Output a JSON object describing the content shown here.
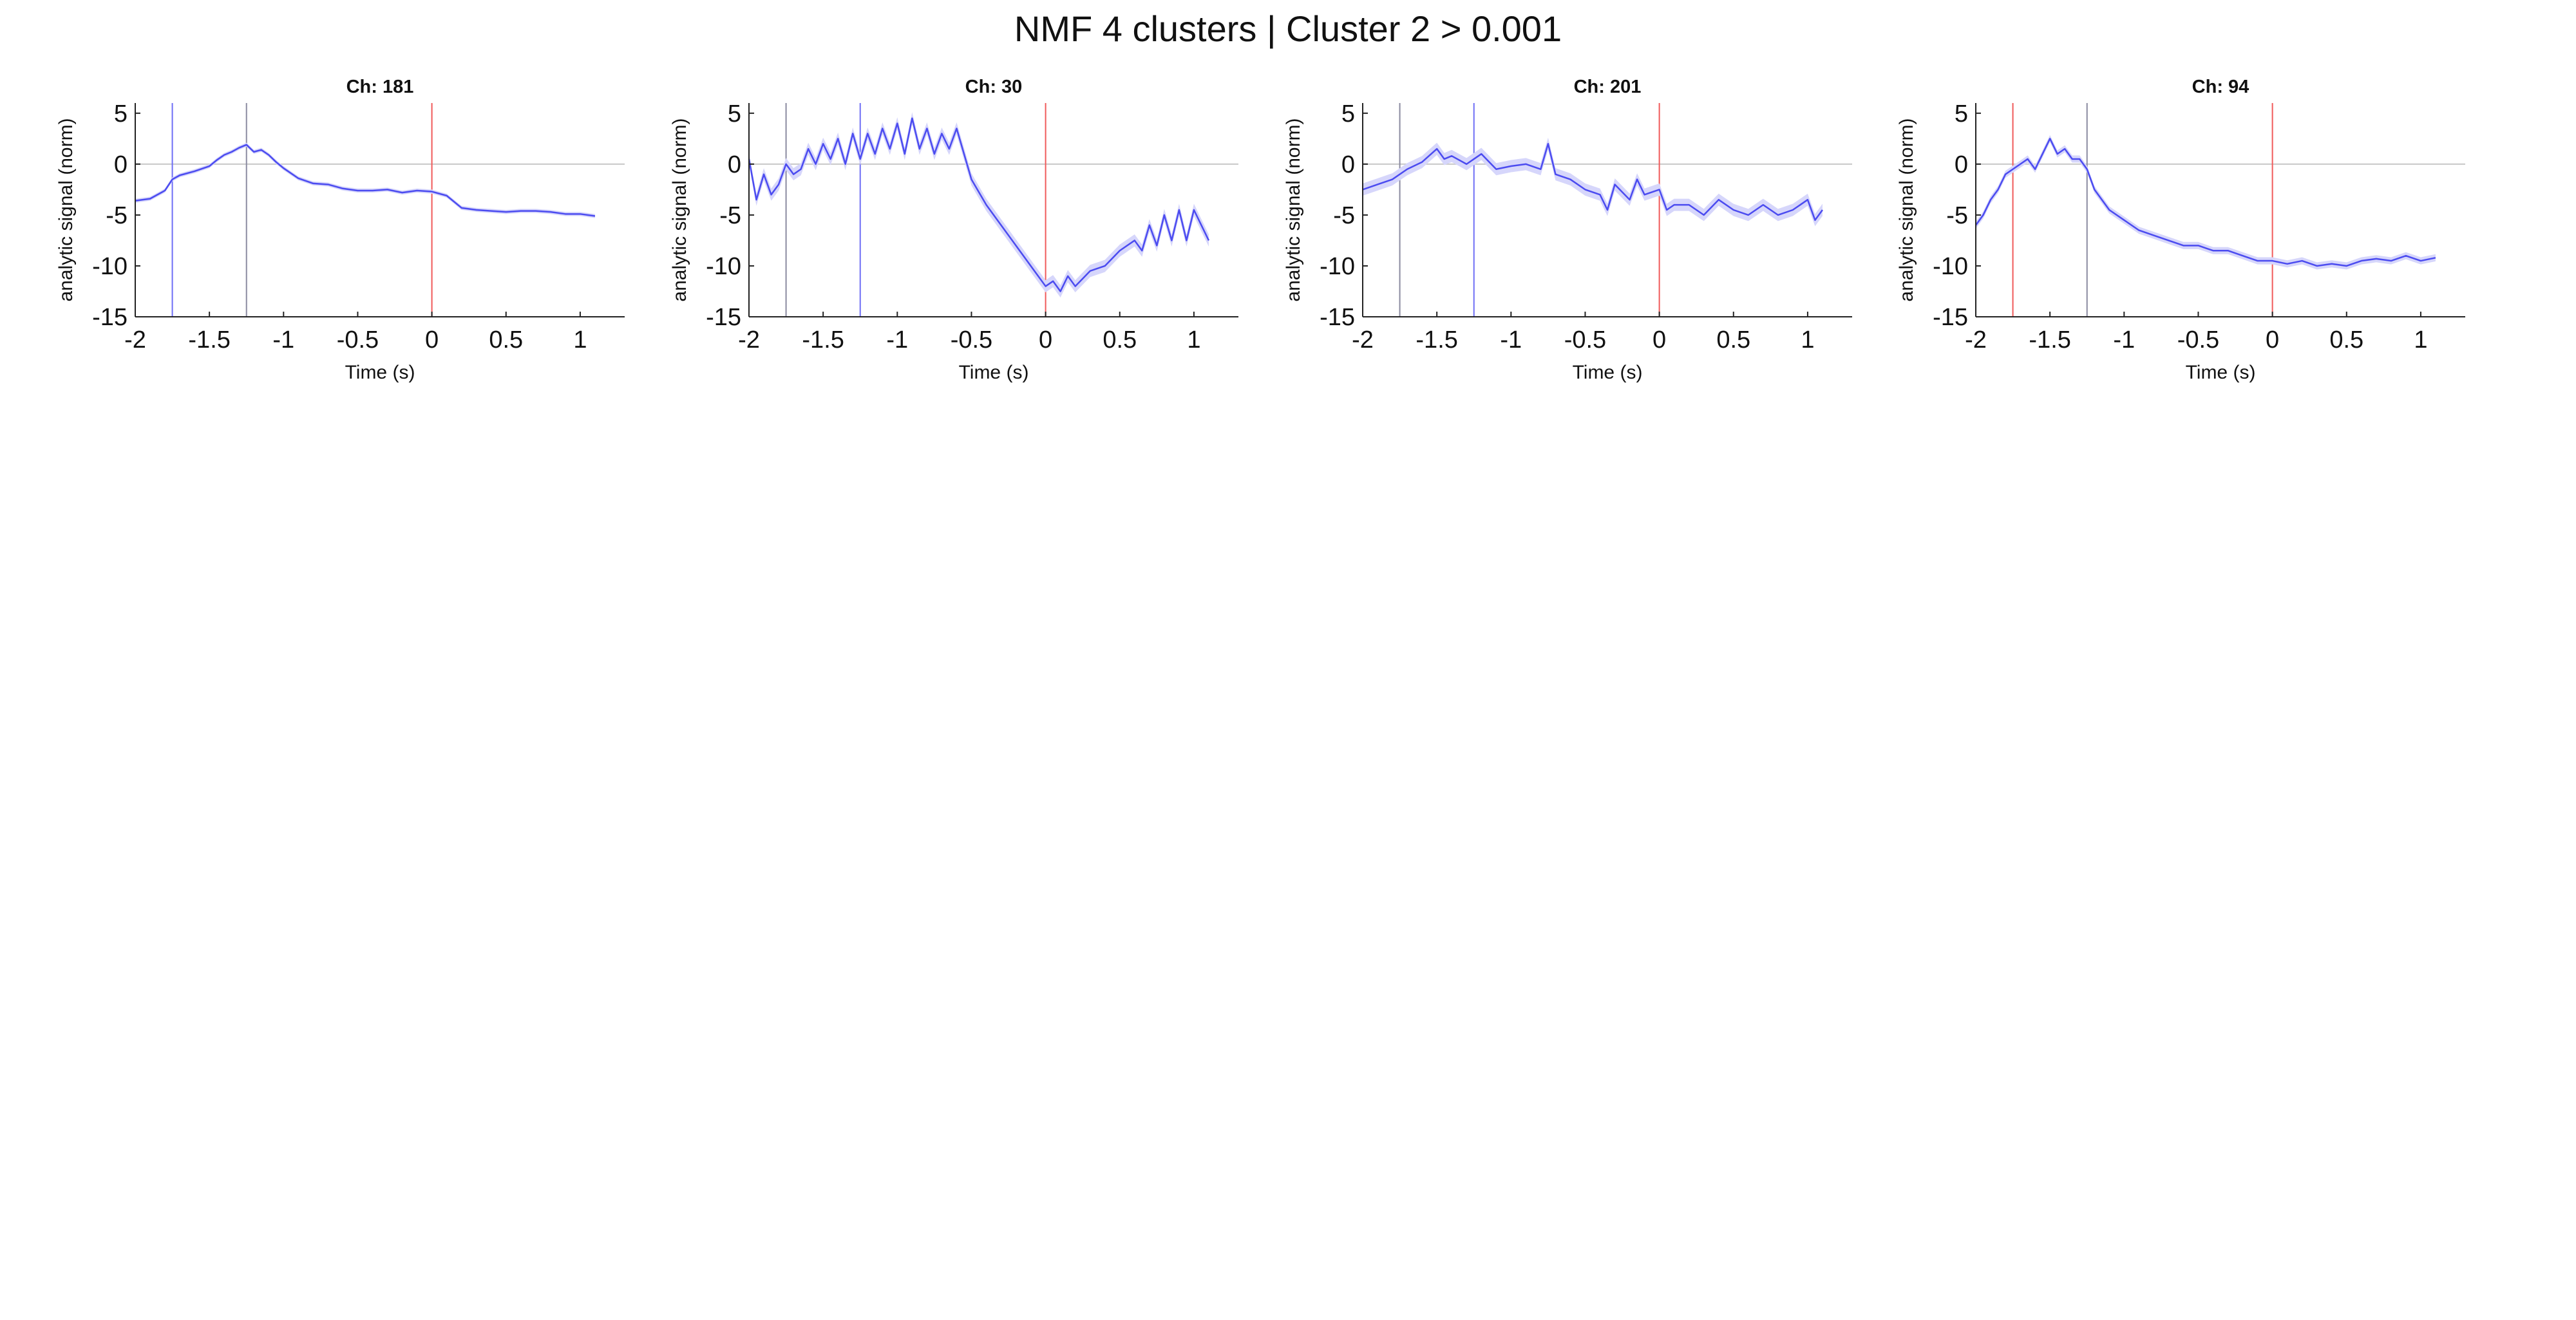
{
  "figure_title": "NMF 4 clusters | Cluster 2 > 0.001",
  "colors": {
    "trace": "#4b4bf0",
    "band": "#d6d6fb",
    "blue_line": "#6e6ef5",
    "gray_line": "#8a8aa0",
    "red_line": "#f05a5a",
    "zero_line": "#c8c8c8",
    "axis": "#222222"
  },
  "chart_data": [
    {
      "type": "line",
      "title": "Ch: 181",
      "xlabel": "Time (s)",
      "ylabel": "analytic signal (norm)",
      "xlim": [
        -2,
        1.3
      ],
      "ylim": [
        -15,
        6
      ],
      "xticks": [
        -2,
        -1.5,
        -1,
        -0.5,
        0,
        0.5,
        1
      ],
      "xtick_labels": [
        "-2",
        "-1.5",
        "-1",
        "-0.5",
        "0",
        "0.5",
        "1"
      ],
      "yticks": [
        5,
        0,
        -5,
        -10,
        -15
      ],
      "ytick_labels": [
        "5",
        "0",
        "-5",
        "-10",
        "-15"
      ],
      "vlines": [
        {
          "x": -1.75,
          "color": "blue"
        },
        {
          "x": -1.25,
          "color": "gray"
        },
        {
          "x": 0,
          "color": "red"
        }
      ],
      "hline": 0,
      "band": 0.2,
      "series": [
        {
          "x": [
            -2,
            -1.9,
            -1.8,
            -1.75,
            -1.7,
            -1.6,
            -1.5,
            -1.45,
            -1.4,
            -1.35,
            -1.3,
            -1.25,
            -1.2,
            -1.15,
            -1.1,
            -1.05,
            -1,
            -0.9,
            -0.8,
            -0.7,
            -0.6,
            -0.5,
            -0.4,
            -0.3,
            -0.2,
            -0.1,
            0,
            0.1,
            0.2,
            0.3,
            0.4,
            0.5,
            0.6,
            0.7,
            0.8,
            0.9,
            1,
            1.1
          ],
          "y": [
            -3.6,
            -3.4,
            -2.6,
            -1.5,
            -1.1,
            -0.7,
            -0.2,
            0.4,
            0.9,
            1.2,
            1.6,
            1.9,
            1.2,
            1.4,
            0.9,
            0.2,
            -0.4,
            -1.4,
            -1.9,
            -2.0,
            -2.4,
            -2.6,
            -2.6,
            -2.5,
            -2.8,
            -2.6,
            -2.7,
            -3.1,
            -4.3,
            -4.5,
            -4.6,
            -4.7,
            -4.6,
            -4.6,
            -4.7,
            -4.9,
            -4.9,
            -5.1
          ]
        }
      ]
    },
    {
      "type": "line",
      "title": "Ch: 30",
      "xlabel": "Time (s)",
      "ylabel": "analytic signal (norm)",
      "xlim": [
        -2,
        1.3
      ],
      "ylim": [
        -15,
        6
      ],
      "xticks": [
        -2,
        -1.5,
        -1,
        -0.5,
        0,
        0.5,
        1
      ],
      "xtick_labels": [
        "-2",
        "-1.5",
        "-1",
        "-0.5",
        "0",
        "0.5",
        "1"
      ],
      "yticks": [
        5,
        0,
        -5,
        -10,
        -15
      ],
      "ytick_labels": [
        "5",
        "0",
        "-5",
        "-10",
        "-15"
      ],
      "vlines": [
        {
          "x": -1.75,
          "color": "gray"
        },
        {
          "x": -1.25,
          "color": "blue"
        },
        {
          "x": 0,
          "color": "red"
        }
      ],
      "hline": 0,
      "band": 0.6,
      "series": [
        {
          "x": [
            -2,
            -1.95,
            -1.9,
            -1.85,
            -1.8,
            -1.75,
            -1.7,
            -1.65,
            -1.6,
            -1.55,
            -1.5,
            -1.45,
            -1.4,
            -1.35,
            -1.3,
            -1.25,
            -1.2,
            -1.15,
            -1.1,
            -1.05,
            -1,
            -0.95,
            -0.9,
            -0.85,
            -0.8,
            -0.75,
            -0.7,
            -0.65,
            -0.6,
            -0.55,
            -0.5,
            -0.4,
            -0.3,
            -0.2,
            -0.1,
            0,
            0.05,
            0.1,
            0.15,
            0.2,
            0.3,
            0.4,
            0.5,
            0.6,
            0.65,
            0.7,
            0.75,
            0.8,
            0.85,
            0.9,
            0.95,
            1,
            1.05,
            1.1
          ],
          "y": [
            0.5,
            -3.5,
            -1.0,
            -3.0,
            -2.0,
            0.0,
            -1.0,
            -0.5,
            1.5,
            0.0,
            2.0,
            0.5,
            2.5,
            0.0,
            3.0,
            0.5,
            3.0,
            1.0,
            3.5,
            1.5,
            4.0,
            1.0,
            4.5,
            1.5,
            3.5,
            1.0,
            3.0,
            1.5,
            3.5,
            1.0,
            -1.5,
            -4.0,
            -6.0,
            -8.0,
            -10.0,
            -12.0,
            -11.5,
            -12.5,
            -11.0,
            -12.0,
            -10.5,
            -10.0,
            -8.5,
            -7.5,
            -8.5,
            -6.0,
            -8.0,
            -5.0,
            -7.5,
            -4.5,
            -7.5,
            -4.5,
            -6.0,
            -7.5
          ]
        }
      ]
    },
    {
      "type": "line",
      "title": "Ch: 201",
      "xlabel": "Time (s)",
      "ylabel": "analytic signal (norm)",
      "xlim": [
        -2,
        1.3
      ],
      "ylim": [
        -15,
        6
      ],
      "xticks": [
        -2,
        -1.5,
        -1,
        -0.5,
        0,
        0.5,
        1
      ],
      "xtick_labels": [
        "-2",
        "-1.5",
        "-1",
        "-0.5",
        "0",
        "0.5",
        "1"
      ],
      "yticks": [
        5,
        0,
        -5,
        -10,
        -15
      ],
      "ytick_labels": [
        "5",
        "0",
        "-5",
        "-10",
        "-15"
      ],
      "vlines": [
        {
          "x": -1.75,
          "color": "gray"
        },
        {
          "x": -1.25,
          "color": "blue"
        },
        {
          "x": 0,
          "color": "red"
        }
      ],
      "hline": 0,
      "band": 0.6,
      "series": [
        {
          "x": [
            -2,
            -1.9,
            -1.8,
            -1.7,
            -1.6,
            -1.5,
            -1.45,
            -1.4,
            -1.3,
            -1.2,
            -1.1,
            -1,
            -0.9,
            -0.8,
            -0.75,
            -0.7,
            -0.6,
            -0.5,
            -0.4,
            -0.35,
            -0.3,
            -0.2,
            -0.15,
            -0.1,
            0,
            0.05,
            0.1,
            0.2,
            0.3,
            0.4,
            0.5,
            0.6,
            0.7,
            0.8,
            0.9,
            1,
            1.05,
            1.1
          ],
          "y": [
            -2.5,
            -2.0,
            -1.5,
            -0.5,
            0.2,
            1.5,
            0.5,
            0.8,
            0.0,
            1.0,
            -0.5,
            -0.2,
            0.0,
            -0.5,
            2.0,
            -1.0,
            -1.5,
            -2.5,
            -3.0,
            -4.5,
            -2.0,
            -3.5,
            -1.5,
            -3.0,
            -2.5,
            -4.5,
            -4.0,
            -4.0,
            -5.0,
            -3.5,
            -4.5,
            -5.0,
            -4.0,
            -5.0,
            -4.5,
            -3.5,
            -5.5,
            -4.5
          ]
        }
      ]
    },
    {
      "type": "line",
      "title": "Ch: 94",
      "xlabel": "Time (s)",
      "ylabel": "analytic signal (norm)",
      "xlim": [
        -2,
        1.3
      ],
      "ylim": [
        -15,
        6
      ],
      "xticks": [
        -2,
        -1.5,
        -1,
        -0.5,
        0,
        0.5,
        1
      ],
      "xtick_labels": [
        "-2",
        "-1.5",
        "-1",
        "-0.5",
        "0",
        "0.5",
        "1"
      ],
      "yticks": [
        5,
        0,
        -5,
        -10,
        -15
      ],
      "ytick_labels": [
        "5",
        "0",
        "-5",
        "-10",
        "-15"
      ],
      "vlines": [
        {
          "x": -1.75,
          "color": "red"
        },
        {
          "x": -1.25,
          "color": "gray"
        },
        {
          "x": 0,
          "color": "red"
        }
      ],
      "hline": 0,
      "band": 0.35,
      "series": [
        {
          "x": [
            -2,
            -1.95,
            -1.9,
            -1.85,
            -1.8,
            -1.75,
            -1.7,
            -1.65,
            -1.6,
            -1.55,
            -1.5,
            -1.45,
            -1.4,
            -1.35,
            -1.3,
            -1.25,
            -1.2,
            -1.1,
            -1,
            -0.9,
            -0.8,
            -0.7,
            -0.6,
            -0.5,
            -0.4,
            -0.3,
            -0.2,
            -0.1,
            0,
            0.1,
            0.2,
            0.3,
            0.4,
            0.5,
            0.6,
            0.7,
            0.8,
            0.9,
            1,
            1.1
          ],
          "y": [
            -6.0,
            -5.0,
            -3.5,
            -2.5,
            -1.0,
            -0.5,
            0.0,
            0.5,
            -0.5,
            1.0,
            2.5,
            1.0,
            1.5,
            0.5,
            0.5,
            -0.5,
            -2.5,
            -4.5,
            -5.5,
            -6.5,
            -7.0,
            -7.5,
            -8.0,
            -8.0,
            -8.5,
            -8.5,
            -9.0,
            -9.5,
            -9.5,
            -9.8,
            -9.5,
            -10.0,
            -9.8,
            -10.0,
            -9.5,
            -9.3,
            -9.5,
            -9.0,
            -9.5,
            -9.2
          ]
        }
      ]
    }
  ]
}
